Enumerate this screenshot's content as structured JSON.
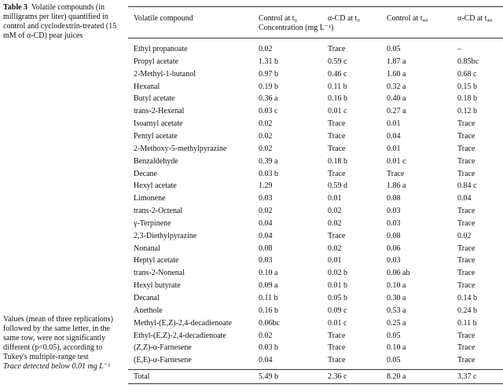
{
  "caption": {
    "label": "Table 3",
    "text": "Volatile compounds (in milligrams per liter) quantified in control and cyclodextrin-treated (15 mM of α-CD) pear juices"
  },
  "table": {
    "headers": [
      "Volatile compound",
      "Control at t₀",
      "α-CD at t₀",
      "Control at t₄₀",
      "α-CD at t₄₀"
    ],
    "subheader": "Concentration (mg L⁻¹)",
    "rows": [
      [
        "Ethyl propanoate",
        "0.02",
        "Trace",
        "0.05",
        "–"
      ],
      [
        "Propyl acetate",
        "1.31 b",
        "0.59 c",
        "1.87 a",
        "0.85bc"
      ],
      [
        "2-Methyl-1-butanol",
        "0.97 b",
        "0.46 c",
        "1.60 a",
        "0.68 c"
      ],
      [
        "Hexanal",
        "0.19 b",
        "0.11 b",
        "0.32 a",
        "0.15 b"
      ],
      [
        "Butyl acetate",
        "0.36 a",
        "0.16 b",
        "0.40 a",
        "0.18 b"
      ],
      [
        "trans-2-Hexenal",
        "0.03 c",
        "0.01 c",
        "0.27 a",
        "0.12 b"
      ],
      [
        "Isoamyl acetate",
        "0.02",
        "Trace",
        "0.01",
        "Trace"
      ],
      [
        "Pentyl acetate",
        "0.02",
        "Trace",
        "0.04",
        "Trace"
      ],
      [
        "2-Methoxy-5-methylpyrazine",
        "0.02",
        "Trace",
        "0.01",
        "Trace"
      ],
      [
        "Benzaldehyde",
        "0.39 a",
        "0.18 b",
        "0.01 c",
        "Trace"
      ],
      [
        "Decane",
        "0.03 b",
        "Trace",
        "Trace",
        "Trace"
      ],
      [
        "Hexyl acetate",
        "1.29",
        "0.59 d",
        "1.86 a",
        "0.84 c"
      ],
      [
        "Limonene",
        "0.03",
        "0.01",
        "0.08",
        "0.04"
      ],
      [
        "trans-2-Octenal",
        "0.02",
        "0.02",
        "0.03",
        "Trace"
      ],
      [
        "γ-Terpinene",
        "0.04",
        "0.02",
        "0.03",
        "Trace"
      ],
      [
        "2,3-Diethylpyrazine",
        "0.04",
        "Trace",
        "0.08",
        "0.02"
      ],
      [
        "Nonanal",
        "0.08",
        "0.02",
        "0.06",
        "Trace"
      ],
      [
        "Heptyl acetate",
        "0.03",
        "0.01",
        "0.03",
        "Trace"
      ],
      [
        "trans-2-Nonenal",
        "0.10 a",
        "0.02 b",
        "0.06 ab",
        "Trace"
      ],
      [
        "Hexyl butyrate",
        "0.09 a",
        "0.01 b",
        "0.10 a",
        "Trace"
      ],
      [
        "Decanal",
        "0.11 b",
        "0.05 b",
        "0.30 a",
        "0.14 b"
      ],
      [
        "Anethole",
        "0.16 b",
        "0.09 c",
        "0.53 a",
        "0.24 b"
      ],
      [
        "Methyl-(E,Z)-2,4-decadienoate",
        "0.06bc",
        "0.01 c",
        "0.25 a",
        "0.11 b"
      ],
      [
        "Ethyl-(E,Z)-2,4-decadienoate",
        "0.02",
        "Trace",
        "0.05",
        "Trace"
      ],
      [
        "(Z,Z)-α-Farnesene",
        "0.03 b",
        "Trace",
        "0.10 a",
        "Trace"
      ],
      [
        "(E,E)-α-Farnesene",
        "0.04",
        "Trace",
        "0.05",
        "Trace"
      ],
      [
        "Total",
        "5.49 b",
        "2.36 c",
        "8.20 a",
        "3.37 c"
      ]
    ]
  },
  "footnotes": [
    "Values (mean of three replications) followed by the same letter, in the same row, were not significantly different (p<0.05), according to Tukey's multiple-range test",
    "Trace detected below 0.01 mg L⁻¹"
  ]
}
